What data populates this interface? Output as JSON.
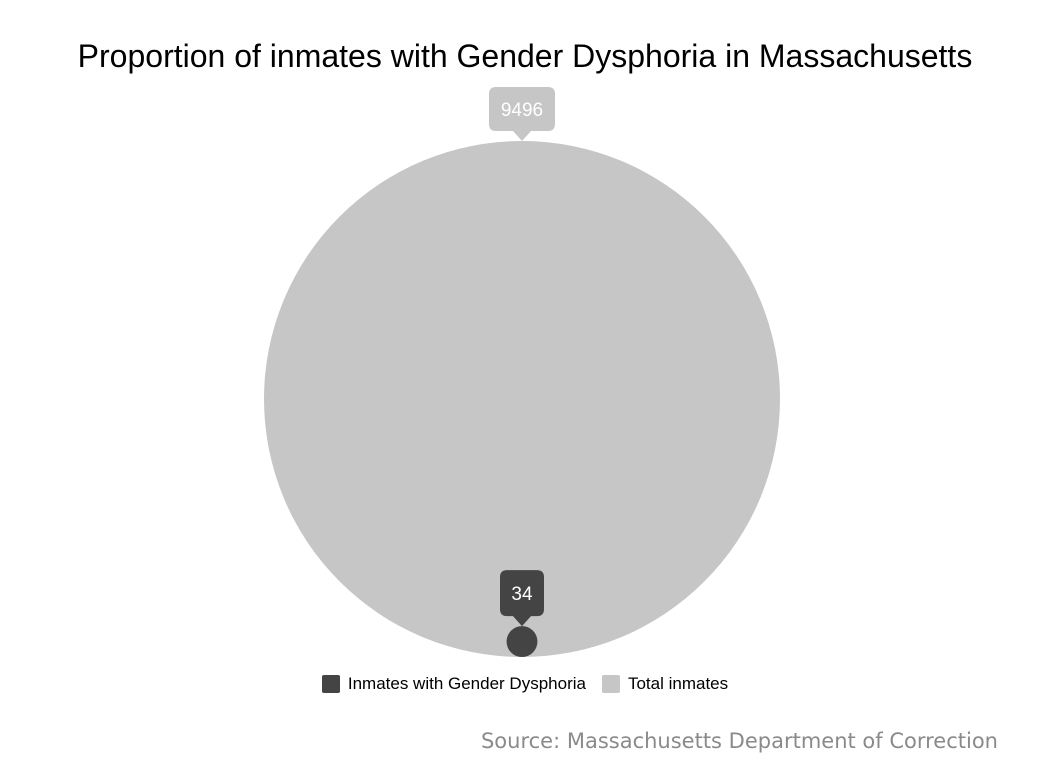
{
  "chart_data": {
    "type": "bubble-proportion",
    "title": "Proportion of inmates with Gender Dysphoria in Massachusetts",
    "series": [
      {
        "name": "Inmates with Gender Dysphoria",
        "value": 34,
        "label": "34",
        "color": "#444444"
      },
      {
        "name": "Total inmates",
        "value": 9496,
        "label": "9496",
        "color": "#c6c6c6"
      }
    ],
    "legend_position": "bottom-center",
    "source": "Source: Massachusetts Department of Correction"
  }
}
